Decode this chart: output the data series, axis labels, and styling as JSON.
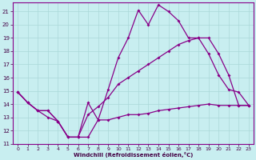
{
  "xlabel": "Windchill (Refroidissement éolien,°C)",
  "xlim": [
    -0.5,
    23.5
  ],
  "ylim": [
    11,
    21.7
  ],
  "yticks": [
    11,
    12,
    13,
    14,
    15,
    16,
    17,
    18,
    19,
    20,
    21
  ],
  "xticks": [
    0,
    1,
    2,
    3,
    4,
    5,
    6,
    7,
    8,
    9,
    10,
    11,
    12,
    13,
    14,
    15,
    16,
    17,
    18,
    19,
    20,
    21,
    22,
    23
  ],
  "bg_color": "#c8eef0",
  "line_color": "#880088",
  "grid_color": "#aad8d8",
  "line1_x": [
    0,
    1,
    2,
    3,
    4,
    5,
    6,
    7,
    8,
    9,
    10,
    11,
    12,
    13,
    14,
    15,
    16,
    17,
    18,
    19,
    20,
    21,
    22,
    23
  ],
  "line1_y": [
    14.9,
    14.1,
    13.5,
    13.5,
    12.7,
    11.5,
    11.5,
    14.1,
    12.8,
    15.1,
    17.5,
    19.0,
    21.1,
    20.0,
    21.5,
    21.0,
    20.3,
    19.0,
    19.0,
    17.8,
    16.2,
    15.1,
    14.9,
    13.9
  ],
  "line2_x": [
    0,
    1,
    2,
    3,
    4,
    5,
    6,
    7,
    8,
    9,
    10,
    11,
    12,
    13,
    14,
    15,
    16,
    17,
    18,
    19,
    20,
    21,
    22,
    23
  ],
  "line2_y": [
    14.9,
    14.1,
    13.5,
    13.5,
    12.7,
    11.5,
    11.5,
    13.2,
    13.8,
    14.5,
    15.5,
    16.0,
    16.5,
    17.0,
    17.5,
    18.0,
    18.5,
    18.8,
    19.0,
    19.0,
    17.8,
    16.2,
    13.9,
    13.9
  ],
  "line3_x": [
    0,
    1,
    2,
    3,
    4,
    5,
    6,
    7,
    8,
    9,
    10,
    11,
    12,
    13,
    14,
    15,
    16,
    17,
    18,
    19,
    20,
    21,
    22,
    23
  ],
  "line3_y": [
    14.9,
    14.1,
    13.5,
    13.0,
    12.7,
    11.5,
    11.5,
    11.5,
    12.8,
    12.8,
    13.0,
    13.2,
    13.2,
    13.3,
    13.5,
    13.6,
    13.7,
    13.8,
    13.9,
    14.0,
    13.9,
    13.9,
    13.9,
    13.9
  ]
}
